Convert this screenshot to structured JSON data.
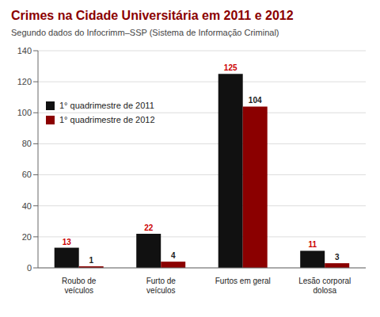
{
  "chart_data": {
    "type": "bar",
    "title": "Crimes na Cidade Universitária em 2011 e 2012",
    "subtitle": "Segundo dados do Infocrimm–SSP (Sistema de Informação Criminal)",
    "categories": [
      "Roubo de veículos",
      "Furto de veículos",
      "Furtos em geral",
      "Lesão corporal dolosa"
    ],
    "series": [
      {
        "name": "1° quadrimestre de 2011",
        "color": "#111111",
        "values": [
          13,
          22,
          125,
          11
        ]
      },
      {
        "name": "1° quadrimestre de 2012",
        "color": "#8B0000",
        "values": [
          1,
          4,
          104,
          3
        ]
      }
    ],
    "ylim": [
      0,
      140
    ],
    "yticks": [
      0,
      20,
      40,
      60,
      80,
      100,
      120,
      140
    ],
    "grid": true,
    "legend": "upper left",
    "data_labels": true
  }
}
